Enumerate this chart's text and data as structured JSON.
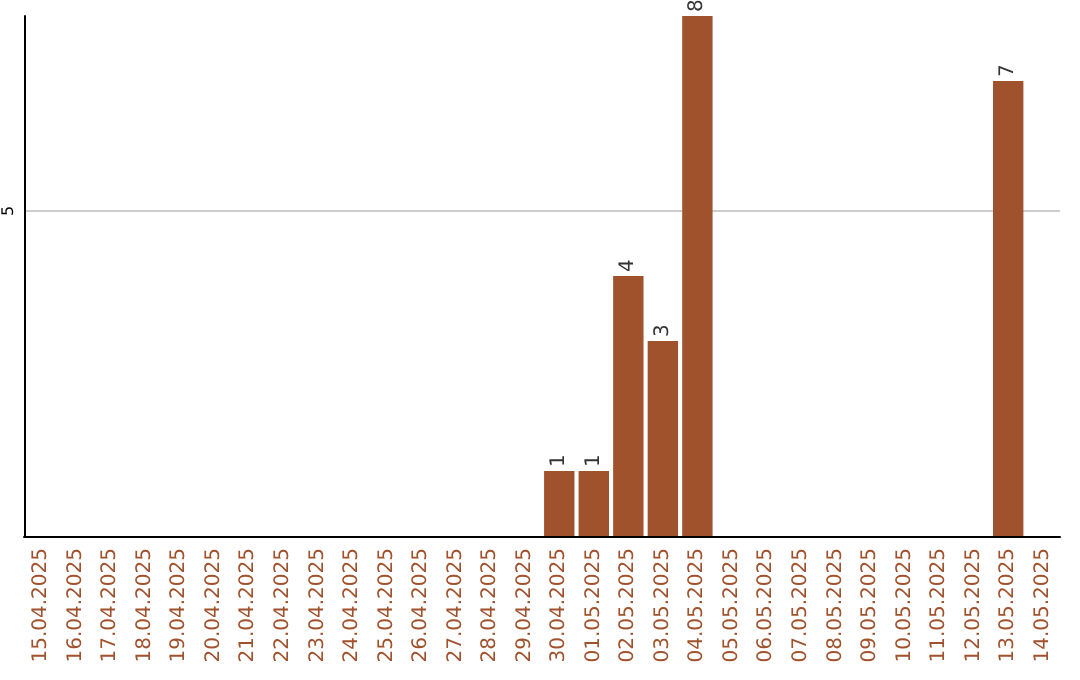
{
  "chart_data": {
    "type": "bar",
    "categories": [
      "15.04.2025",
      "16.04.2025",
      "17.04.2025",
      "18.04.2025",
      "19.04.2025",
      "20.04.2025",
      "21.04.2025",
      "22.04.2025",
      "23.04.2025",
      "24.04.2025",
      "25.04.2025",
      "26.04.2025",
      "27.04.2025",
      "28.04.2025",
      "29.04.2025",
      "30.04.2025",
      "01.05.2025",
      "02.05.2025",
      "03.05.2025",
      "04.05.2025",
      "05.05.2025",
      "06.05.2025",
      "07.05.2025",
      "08.05.2025",
      "09.05.2025",
      "10.05.2025",
      "11.05.2025",
      "12.05.2025",
      "13.05.2025",
      "14.05.2025"
    ],
    "values": [
      null,
      null,
      null,
      null,
      null,
      null,
      null,
      null,
      null,
      null,
      null,
      null,
      null,
      null,
      null,
      1,
      1,
      4,
      3,
      8,
      null,
      null,
      null,
      null,
      null,
      null,
      null,
      null,
      7,
      null
    ],
    "color": "#a0522d",
    "ylim": [
      0,
      8
    ],
    "yticks": [
      5
    ],
    "grid": "y",
    "data_labels": true
  }
}
